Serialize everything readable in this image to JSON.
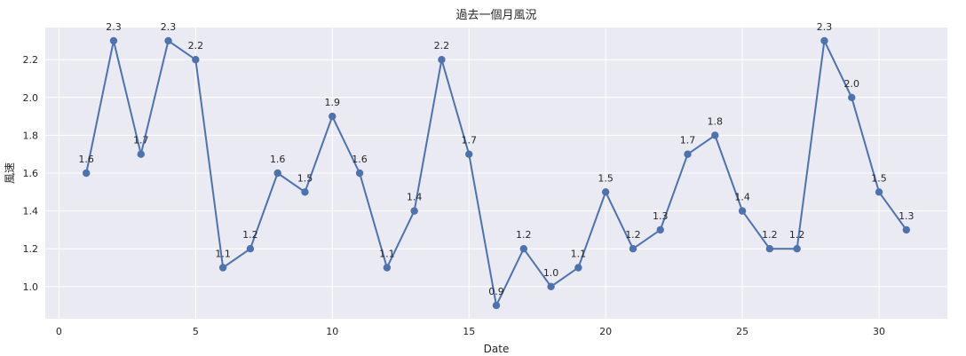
{
  "chart_data": {
    "type": "line",
    "title": "過去一個月風況",
    "xlabel": "Date",
    "ylabel": "風速",
    "xlim": [
      -0.5,
      32.5
    ],
    "ylim": [
      0.83,
      2.37
    ],
    "xticks": [
      0,
      5,
      10,
      15,
      20,
      25,
      30
    ],
    "yticks": [
      1.0,
      1.2,
      1.4,
      1.6,
      1.8,
      2.0,
      2.2
    ],
    "grid": true,
    "legend": "none",
    "series": [
      {
        "color": "#4c72b0",
        "x": [
          1,
          2,
          3,
          4,
          5,
          6,
          7,
          8,
          9,
          10,
          11,
          12,
          13,
          14,
          15,
          16,
          17,
          18,
          19,
          20,
          21,
          22,
          23,
          24,
          25,
          26,
          27,
          28,
          29,
          30,
          31
        ],
        "values": [
          1.6,
          2.3,
          1.7,
          2.3,
          2.2,
          1.1,
          1.2,
          1.6,
          1.5,
          1.9,
          1.6,
          1.1,
          1.4,
          2.2,
          1.7,
          0.9,
          1.2,
          1.0,
          1.1,
          1.5,
          1.2,
          1.3,
          1.7,
          1.8,
          1.4,
          1.2,
          1.2,
          2.3,
          2.0,
          1.5,
          1.3
        ],
        "labels": [
          "1.6",
          "2.3",
          "1.7",
          "2.3",
          "2.2",
          "1.1",
          "1.2",
          "1.6",
          "1.5",
          "1.9",
          "1.6",
          "1.1",
          "1.4",
          "2.2",
          "1.7",
          "0.9",
          "1.2",
          "1.0",
          "1.1",
          "1.5",
          "1.2",
          "1.3",
          "1.7",
          "1.8",
          "1.4",
          "1.2",
          "1.2",
          "2.3",
          "2.0",
          "1.5",
          "1.3"
        ]
      }
    ],
    "colors": {
      "background": "#eaeaf2",
      "grid": "#ffffff",
      "line": "#4c72b0"
    }
  }
}
